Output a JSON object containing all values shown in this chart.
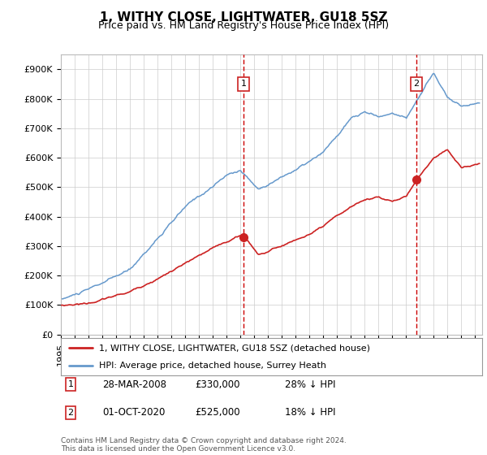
{
  "title": "1, WITHY CLOSE, LIGHTWATER, GU18 5SZ",
  "subtitle": "Price paid vs. HM Land Registry's House Price Index (HPI)",
  "ylabel_ticks": [
    "£0",
    "£100K",
    "£200K",
    "£300K",
    "£400K",
    "£500K",
    "£600K",
    "£700K",
    "£800K",
    "£900K"
  ],
  "ytick_values": [
    0,
    100000,
    200000,
    300000,
    400000,
    500000,
    600000,
    700000,
    800000,
    900000
  ],
  "ylim": [
    0,
    950000
  ],
  "xlim_start": 1995.0,
  "xlim_end": 2025.5,
  "hpi_color": "#6699cc",
  "price_color": "#cc2222",
  "vline_color": "#cc0000",
  "sale1_x": 2008.23,
  "sale1_y": 330000,
  "sale2_x": 2020.75,
  "sale2_y": 525000,
  "legend_label1": "1, WITHY CLOSE, LIGHTWATER, GU18 5SZ (detached house)",
  "legend_label2": "HPI: Average price, detached house, Surrey Heath",
  "annotation1_label": "28-MAR-2008",
  "annotation1_price": "£330,000",
  "annotation1_hpi": "28% ↓ HPI",
  "annotation2_label": "01-OCT-2020",
  "annotation2_price": "£525,000",
  "annotation2_hpi": "18% ↓ HPI",
  "footer": "Contains HM Land Registry data © Crown copyright and database right 2024.\nThis data is licensed under the Open Government Licence v3.0.",
  "bg_color": "#ffffff",
  "grid_color": "#cccccc",
  "title_fontsize": 11,
  "subtitle_fontsize": 9,
  "tick_fontsize": 8
}
